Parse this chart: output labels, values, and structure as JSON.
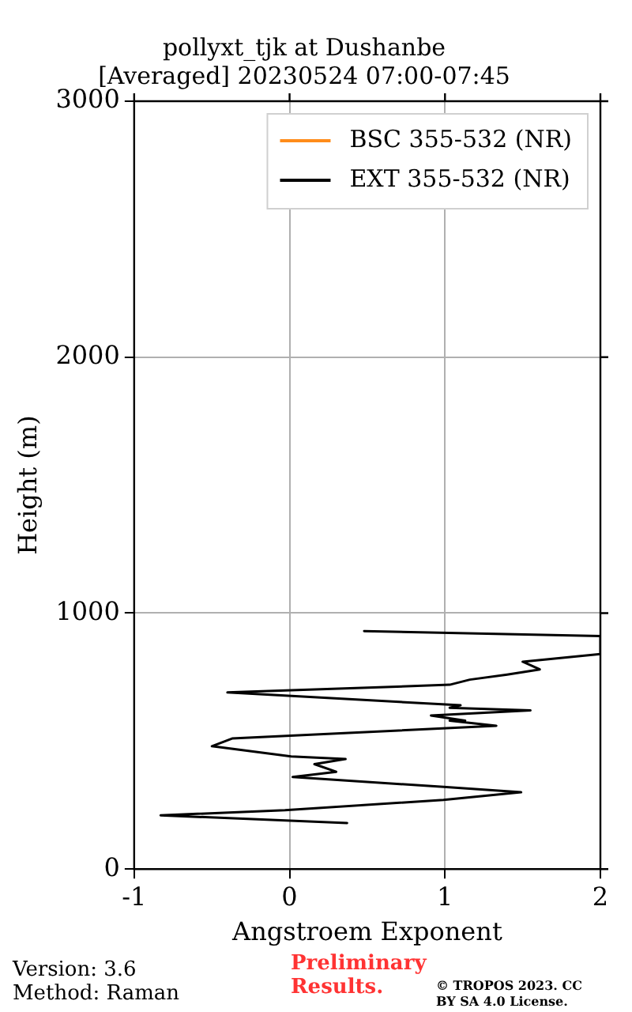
{
  "chart_data": {
    "type": "line",
    "title": "pollyxt_tjk at Dushanbe",
    "subtitle": "[Averaged] 20230524 07:00-07:45",
    "xlabel": "Angstroem Exponent",
    "ylabel": "Height (m)",
    "xlim": [
      -1,
      2
    ],
    "xticks": [
      -1,
      0,
      1,
      2
    ],
    "ylim": [
      0,
      3000
    ],
    "yticks": [
      0,
      1000,
      2000,
      3000
    ],
    "grid": true,
    "legend": "top right",
    "series": [
      {
        "name": "BSC 355-532 (NR)",
        "color": "#ff8c1a"
      },
      {
        "name": "EXT 355-532 (NR)",
        "color": "#000000",
        "x": [
          0.37,
          -0.83,
          -0.03,
          0.99,
          1.49,
          1.01,
          0.02,
          0.3,
          0.16,
          0.36,
          0.01,
          -0.5,
          -0.37,
          1.33,
          1.03,
          1.13,
          0.91,
          1.55,
          1.03,
          1.1,
          -0.4,
          1.03,
          1.16,
          1.4,
          1.61,
          1.5,
          2.0,
          2.0,
          0.48
        ],
        "values": [
          180,
          210,
          230,
          270,
          300,
          320,
          360,
          380,
          410,
          430,
          440,
          480,
          510,
          560,
          580,
          580,
          600,
          620,
          630,
          640,
          690,
          720,
          740,
          760,
          780,
          810,
          840,
          910,
          930
        ]
      }
    ],
    "annotations": [
      "Version: 3.6",
      "Method: Raman",
      "Preliminary Results.",
      "© TROPOS 2023. CC BY SA 4.0 License."
    ]
  }
}
